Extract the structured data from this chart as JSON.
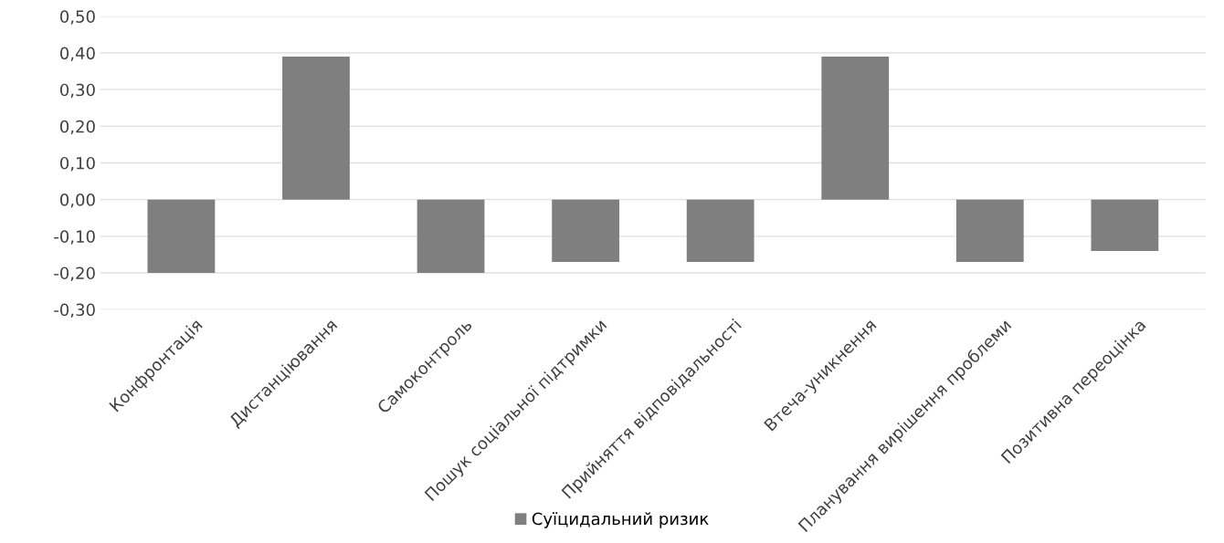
{
  "chart_data": {
    "type": "bar",
    "categories": [
      "Конфронтація",
      "Дистанціювання",
      "Самоконтроль",
      "Пошук соціальної підтримки",
      "Прийняття відповідальності",
      "Втеча-уникнення",
      "Планування вирішення проблеми",
      "Позитивна переоцінка"
    ],
    "series": [
      {
        "name": "Суїцидальний ризик",
        "color": "#7f7f7f",
        "values": [
          -0.2,
          0.39,
          -0.2,
          -0.17,
          -0.17,
          0.39,
          -0.17,
          -0.14
        ]
      }
    ],
    "ylim": [
      -0.3,
      0.5
    ],
    "yticks": [
      {
        "value": -0.3,
        "label": "-0,30"
      },
      {
        "value": -0.2,
        "label": "-0,20"
      },
      {
        "value": -0.1,
        "label": "-0,10"
      },
      {
        "value": 0,
        "label": "0,00"
      },
      {
        "value": 0.1,
        "label": "0,10"
      },
      {
        "value": 0.2,
        "label": "0,20"
      },
      {
        "value": 0.3,
        "label": "0,30"
      },
      {
        "value": 0.4,
        "label": "0,40"
      },
      {
        "value": 0.5,
        "label": "0,50"
      }
    ],
    "grid": "y",
    "legend": "bottom"
  }
}
